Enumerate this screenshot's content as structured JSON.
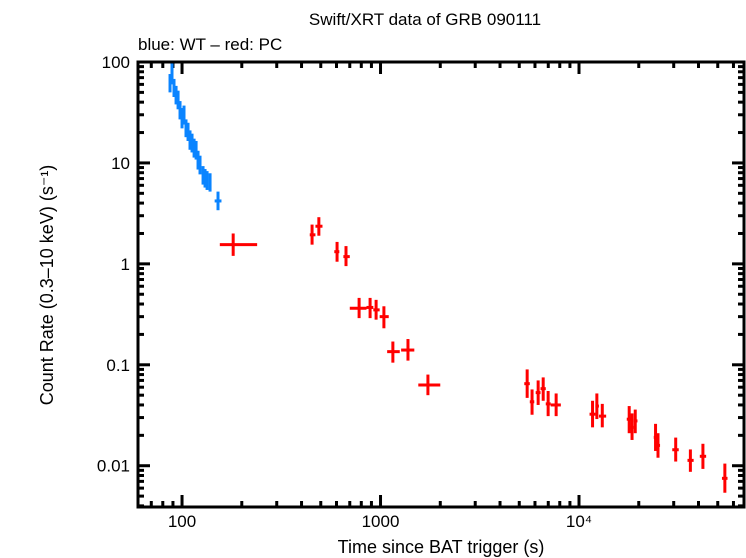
{
  "chart_data": {
    "type": "scatter",
    "title": "Swift/XRT data of GRB 090111",
    "subtitle": "blue: WT – red: PC",
    "xlabel": "Time since BAT trigger (s)",
    "ylabel": "Count Rate (0.3–10 keV) (s⁻¹)",
    "xscale": "log",
    "yscale": "log",
    "xlim": [
      60,
      67800
    ],
    "ylim": [
      0.0039,
      100
    ],
    "x_ticks": [
      {
        "value": 100,
        "label": "100"
      },
      {
        "value": 1000,
        "label": "1000"
      },
      {
        "value": 10000,
        "label": "10⁴"
      }
    ],
    "y_ticks": [
      {
        "value": 100,
        "label": "100"
      },
      {
        "value": 10,
        "label": "10"
      },
      {
        "value": 1,
        "label": "1"
      },
      {
        "value": 0.1,
        "label": "0.1"
      },
      {
        "value": 0.01,
        "label": "0.01"
      }
    ],
    "grid": false,
    "point_format": [
      "time",
      "time_lo",
      "time_hi",
      "rate",
      "rate_lo",
      "rate_hi"
    ],
    "series": [
      {
        "mode": "WT",
        "color": "#0a84ff",
        "points": [
          [
            87.0,
            86.2,
            87.8,
            61.9,
            50,
            76
          ],
          [
            89.0,
            88.2,
            89.8,
            74.2,
            60,
            100
          ],
          [
            91.1,
            90.3,
            91.9,
            55.2,
            45,
            68
          ],
          [
            93.3,
            92.5,
            94.1,
            47.0,
            38,
            58
          ],
          [
            95.5,
            94.7,
            96.3,
            41.9,
            34,
            52
          ],
          [
            97.7,
            96.9,
            98.5,
            33.4,
            27,
            41
          ],
          [
            100,
            99.2,
            100.8,
            27.8,
            22,
            35
          ],
          [
            102.3,
            101.5,
            103.1,
            29.8,
            24,
            37
          ],
          [
            104.7,
            103.9,
            105.5,
            22.1,
            18,
            27
          ],
          [
            107.2,
            106.4,
            108,
            20.2,
            16.5,
            25
          ],
          [
            109.7,
            108.9,
            110.5,
            16.8,
            13.5,
            21
          ],
          [
            112.3,
            111.5,
            113.1,
            15.7,
            12.7,
            19.5
          ],
          [
            115,
            114.2,
            115.8,
            14.0,
            11.3,
            17.4
          ],
          [
            117.7,
            116.9,
            118.5,
            13.3,
            10.8,
            16.5
          ],
          [
            120.4,
            119.6,
            121.2,
            10.6,
            8.6,
            13.2
          ],
          [
            123.2,
            122.4,
            124,
            9.5,
            7.7,
            11.8
          ],
          [
            127.6,
            126.8,
            128.4,
            7.5,
            6.1,
            9.3
          ],
          [
            130.6,
            129.8,
            131.4,
            7.0,
            5.7,
            8.7
          ],
          [
            133.7,
            132.9,
            134.5,
            6.7,
            5.4,
            8.3
          ],
          [
            138.4,
            137.6,
            139.2,
            6.4,
            5.2,
            7.9
          ],
          [
            151.8,
            146,
            158,
            4.2,
            3.4,
            5.2
          ]
        ]
      },
      {
        "mode": "PC",
        "color": "#ff0000",
        "points": [
          [
            181,
            155,
            239,
            1.55,
            1.2,
            2.0
          ],
          [
            452,
            440,
            470,
            1.94,
            1.55,
            2.45
          ],
          [
            489,
            470,
            510,
            2.36,
            1.9,
            2.9
          ],
          [
            604,
            585,
            620,
            1.32,
            1.05,
            1.65
          ],
          [
            670,
            650,
            700,
            1.18,
            0.95,
            1.5
          ],
          [
            780,
            700,
            850,
            0.363,
            0.29,
            0.46
          ],
          [
            886,
            850,
            920,
            0.37,
            0.29,
            0.46
          ],
          [
            950,
            920,
            990,
            0.35,
            0.28,
            0.44
          ],
          [
            1040,
            990,
            1100,
            0.3,
            0.23,
            0.38
          ],
          [
            1154,
            1080,
            1250,
            0.135,
            0.105,
            0.17
          ],
          [
            1375,
            1270,
            1480,
            0.14,
            0.11,
            0.18
          ],
          [
            1733,
            1550,
            2000,
            0.063,
            0.05,
            0.08
          ],
          [
            5480,
            5300,
            5650,
            0.065,
            0.047,
            0.09
          ],
          [
            5800,
            5650,
            5950,
            0.043,
            0.032,
            0.057
          ],
          [
            6225,
            6050,
            6400,
            0.053,
            0.04,
            0.07
          ],
          [
            6600,
            6400,
            6800,
            0.058,
            0.044,
            0.075
          ],
          [
            6990,
            6800,
            7200,
            0.041,
            0.031,
            0.055
          ],
          [
            7670,
            7200,
            8100,
            0.04,
            0.031,
            0.052
          ],
          [
            11700,
            11300,
            12100,
            0.0324,
            0.024,
            0.044
          ],
          [
            12300,
            12100,
            12600,
            0.039,
            0.029,
            0.052
          ],
          [
            13100,
            12600,
            13700,
            0.031,
            0.024,
            0.041
          ],
          [
            17900,
            17400,
            18300,
            0.0289,
            0.021,
            0.039
          ],
          [
            18500,
            18200,
            18900,
            0.024,
            0.018,
            0.033
          ],
          [
            19200,
            18900,
            19700,
            0.0278,
            0.021,
            0.036
          ],
          [
            24300,
            23800,
            24800,
            0.0191,
            0.014,
            0.026
          ],
          [
            25000,
            24600,
            25600,
            0.0159,
            0.012,
            0.021
          ],
          [
            30700,
            29500,
            31800,
            0.0144,
            0.011,
            0.019
          ],
          [
            36400,
            35200,
            37800,
            0.0113,
            0.0087,
            0.0145
          ],
          [
            42100,
            40600,
            43700,
            0.0124,
            0.0093,
            0.0165
          ],
          [
            54300,
            52500,
            56000,
            0.0075,
            0.0054,
            0.0105
          ]
        ]
      }
    ]
  }
}
